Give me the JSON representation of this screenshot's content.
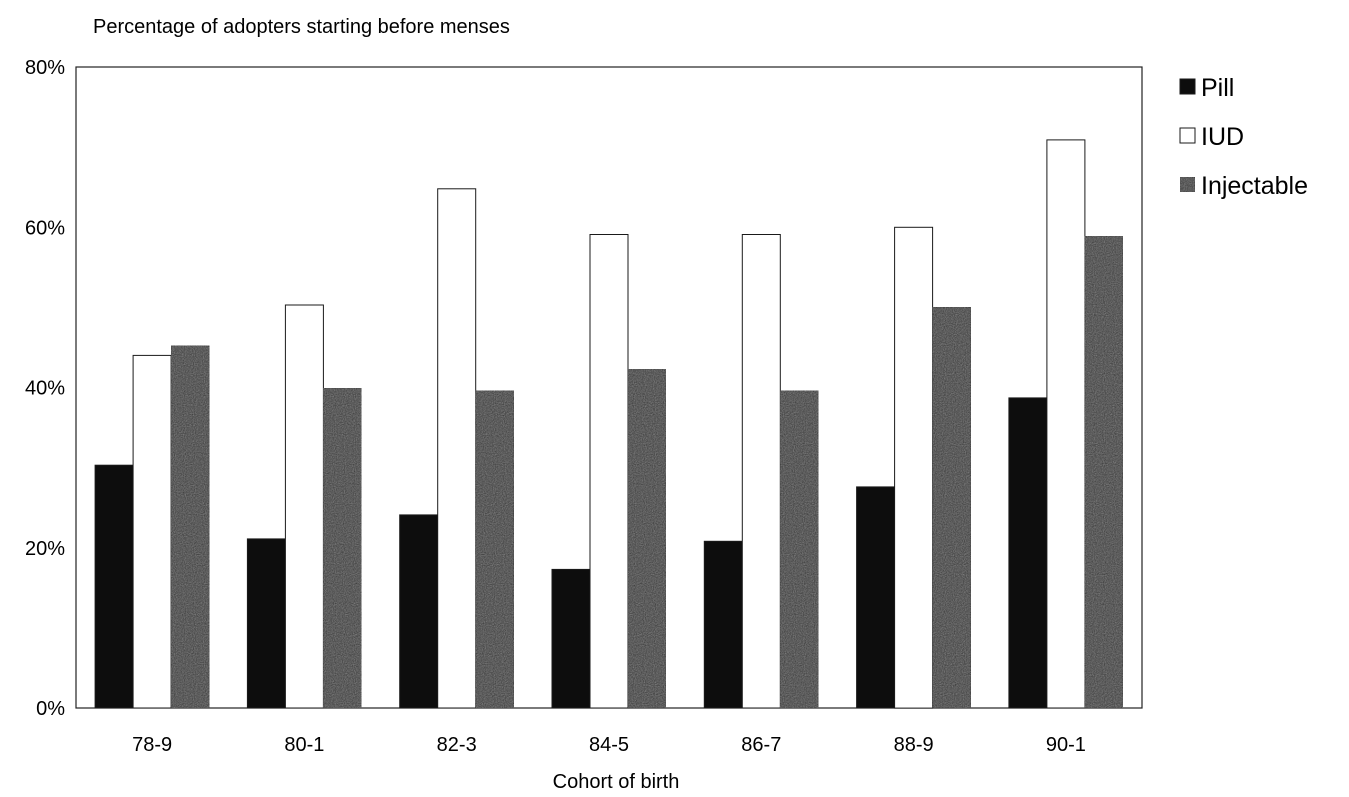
{
  "chart_data": {
    "type": "bar",
    "title": "",
    "ylabel": "Percentage of adopters starting before menses",
    "xlabel": "Cohort of birth",
    "categories": [
      "78-9",
      "80-1",
      "82-3",
      "84-5",
      "86-7",
      "88-9",
      "90-1"
    ],
    "series": [
      {
        "name": "Pill",
        "values": [
          30.3,
          21.1,
          24.1,
          17.3,
          20.8,
          27.6,
          38.7
        ],
        "color": "#0d0d0d"
      },
      {
        "name": "IUD",
        "values": [
          44.0,
          50.3,
          64.8,
          59.1,
          59.1,
          60.0,
          70.9
        ],
        "color": "#ffffff"
      },
      {
        "name": "Injectable",
        "values": [
          45.2,
          39.9,
          39.6,
          42.3,
          39.6,
          50.0,
          58.9
        ],
        "color": "#333333"
      }
    ],
    "ylim": [
      0,
      80
    ],
    "yticks": [
      0,
      20,
      40,
      60,
      80
    ],
    "ytick_labels": [
      "0%",
      "20%",
      "40%",
      "60%",
      "80%"
    ],
    "grid": false,
    "legend_position": "right"
  }
}
